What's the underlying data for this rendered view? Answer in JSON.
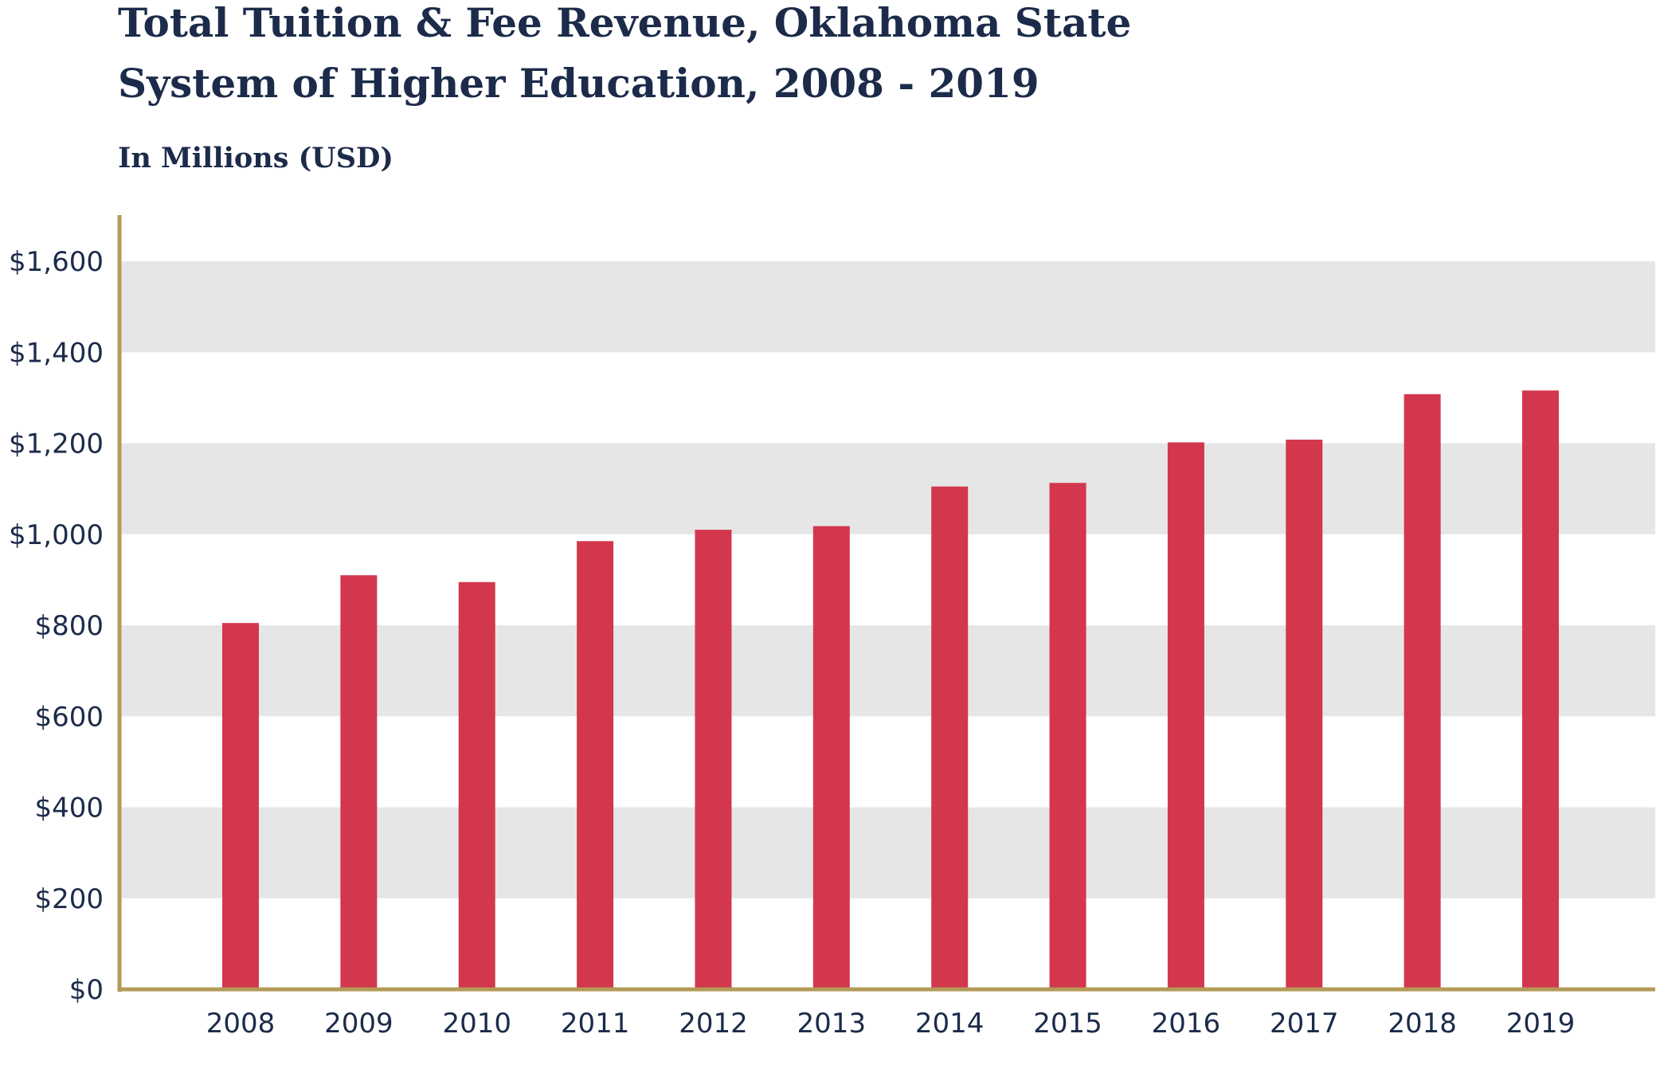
{
  "chart_data": {
    "type": "bar",
    "title_lines": [
      "Total Tuition & Fee Revenue, Oklahoma State",
      "System of Higher Education, 2008 - 2019"
    ],
    "subtitle": "In Millions (USD)",
    "xlabel": "",
    "ylabel": "",
    "categories": [
      "2008",
      "2009",
      "2010",
      "2011",
      "2012",
      "2013",
      "2014",
      "2015",
      "2016",
      "2017",
      "2018",
      "2019"
    ],
    "values": [
      805,
      910,
      895,
      985,
      1010,
      1018,
      1105,
      1113,
      1202,
      1208,
      1308,
      1316
    ],
    "ylim": [
      0,
      1700
    ],
    "yticks": [
      0,
      200,
      400,
      600,
      800,
      1000,
      1200,
      1400,
      1600
    ],
    "ytick_labels": [
      "$0",
      "$200",
      "$400",
      "$600",
      "$800",
      "$1,000",
      "$1,200",
      "$1,400",
      "$1,600"
    ],
    "grid": "alternating horizontal bands",
    "legend": "none",
    "colors": {
      "bar": "#d3374d",
      "axis": "#b39a57",
      "band": "#e6e6e6",
      "text": "#1c2b4a"
    }
  }
}
